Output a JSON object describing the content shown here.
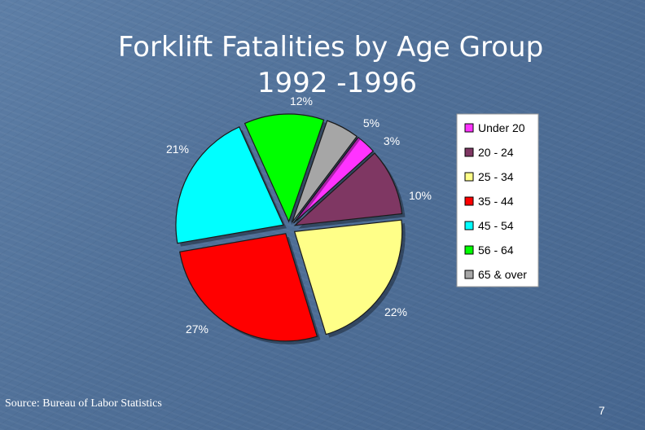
{
  "title": "Forklift Fatalities by Age Group",
  "subtitle": "1992 -1996",
  "source": "Source: Bureau of Labor Statistics",
  "page_number": "7",
  "chart_data": {
    "type": "pie",
    "title": "Forklift Fatalities by Age Group 1992 -1996",
    "exploded": true,
    "slices": [
      {
        "name": "Under 20",
        "value": 3,
        "label": "3%",
        "color": "#ff33ff"
      },
      {
        "name": "20 - 24",
        "value": 10,
        "label": "10%",
        "color": "#7f3763"
      },
      {
        "name": "25 - 34",
        "value": 22,
        "label": "22%",
        "color": "#ffff88"
      },
      {
        "name": "35 - 44",
        "value": 27,
        "label": "27%",
        "color": "#ff0000"
      },
      {
        "name": "45 - 54",
        "value": 21,
        "label": "21%",
        "color": "#00ffff"
      },
      {
        "name": "56 - 64",
        "value": 12,
        "label": "12%",
        "color": "#00ff00"
      },
      {
        "name": "65 & over",
        "value": 5,
        "label": "5%",
        "color": "#a6a6a6"
      }
    ],
    "legend_position": "right"
  }
}
